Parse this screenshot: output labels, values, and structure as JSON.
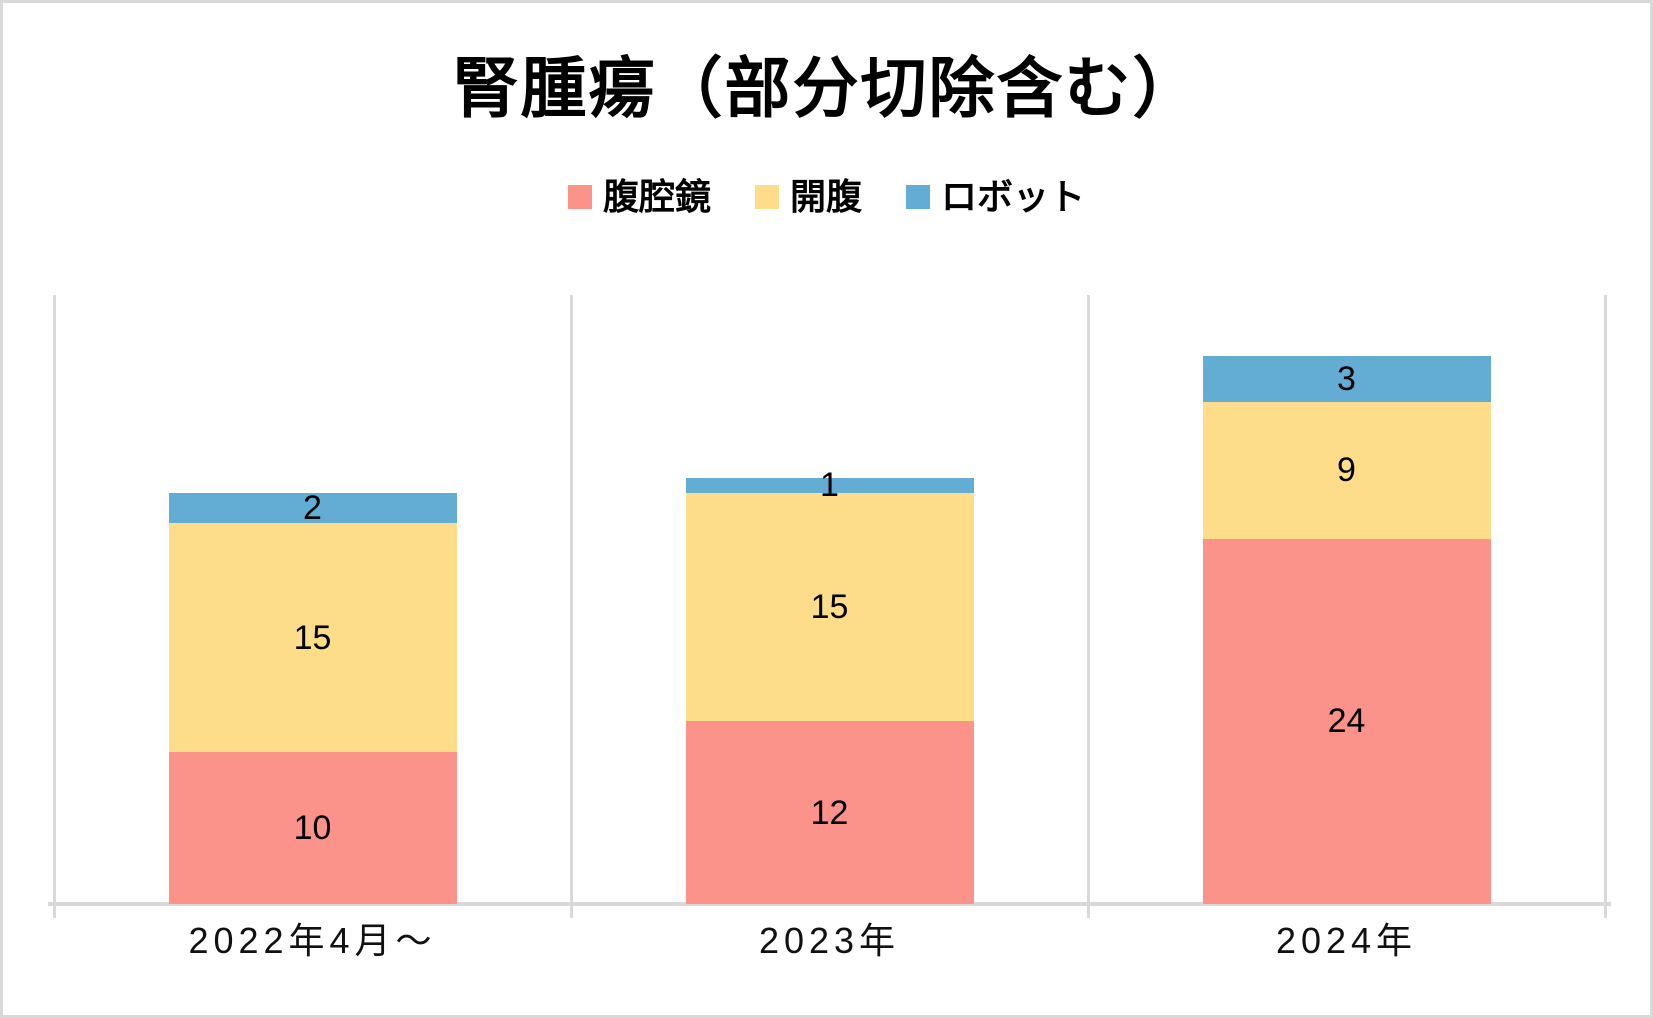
{
  "chart_data": {
    "type": "bar",
    "stacked": true,
    "title": "腎腫瘍（部分切除含む）",
    "categories": [
      "2022年4月～",
      "2023年",
      "2024年"
    ],
    "series": [
      {
        "key": "laparoscopy",
        "name": "腹腔鏡",
        "color": "#FC938A",
        "values": [
          10,
          12,
          24
        ]
      },
      {
        "key": "open",
        "name": "開腹",
        "color": "#FDDD8A",
        "values": [
          15,
          15,
          9
        ]
      },
      {
        "key": "robot",
        "name": "ロボット",
        "color": "#63ADD5",
        "values": [
          2,
          1,
          3
        ]
      }
    ],
    "ylim": [
      0,
      40
    ],
    "legend_position": "top-center",
    "grid": {
      "vertical_category_boundary_lines": true,
      "horizontal_lines": false,
      "y_axis_labels": false
    },
    "data_labels": true
  },
  "colors": {
    "series_laparoscopy": "#FC938A",
    "series_open": "#FDDD8A",
    "series_robot": "#63ADD5",
    "gridline": "#D9D9D9",
    "axis_line": "#D9D9D9",
    "frame_border": "#D9D9D9",
    "text": "#000000",
    "background": "#FFFFFF"
  }
}
